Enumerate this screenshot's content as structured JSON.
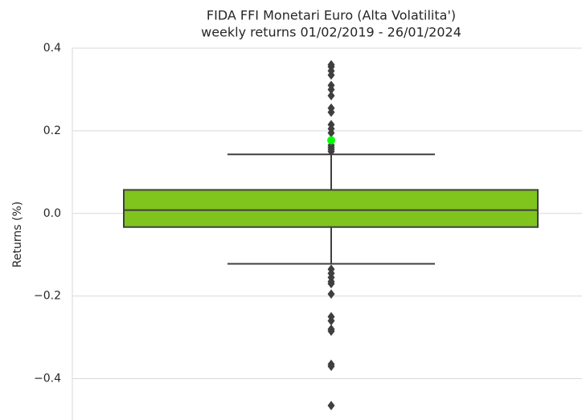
{
  "chart_data": {
    "type": "box",
    "title": "FIDA FFI Monetari Euro (Alta Volatilita')",
    "subtitle": "weekly returns 01/02/2019 - 26/01/2024",
    "y_label": "Returns (%)",
    "ylim": [
      -0.5,
      0.4
    ],
    "yticks": [
      {
        "value": -0.4,
        "label": "−0.4"
      },
      {
        "value": -0.2,
        "label": "−0.2"
      },
      {
        "value": 0,
        "label": "0.0"
      },
      0.2,
      0.4
    ],
    "grid": true,
    "color": "#7fc41d",
    "box": {
      "whisker_low": -0.122,
      "q1": -0.033,
      "median": 0.008,
      "q3": 0.057,
      "whisker_high": 0.143,
      "outliers": [
        0.36,
        0.355,
        0.345,
        0.335,
        0.31,
        0.3,
        0.285,
        0.255,
        0.245,
        0.215,
        0.205,
        0.195,
        0.165,
        0.16,
        0.155,
        0.15,
        -0.135,
        -0.145,
        -0.155,
        -0.165,
        -0.17,
        -0.195,
        -0.25,
        -0.26,
        -0.28,
        -0.285,
        -0.365,
        -0.37,
        -0.465
      ]
    },
    "highlight": {
      "value": 0.177,
      "color": "#00ff00"
    }
  }
}
